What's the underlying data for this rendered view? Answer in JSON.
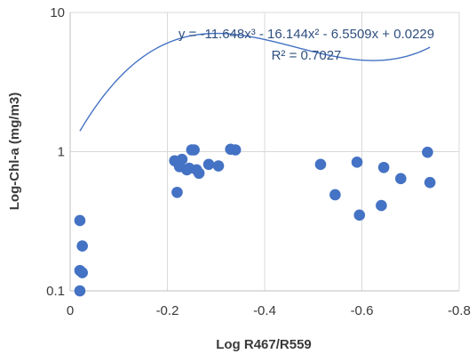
{
  "chart_data": {
    "type": "scatter",
    "title": "",
    "xlabel": "Log R467/R559",
    "ylabel": "Log-Chl-a (mg/m3)",
    "xlim": [
      0,
      -0.8
    ],
    "x_axis_reversed": true,
    "ylim": [
      0.1,
      10
    ],
    "y_scale": "log",
    "x_ticks": [
      0,
      -0.2,
      -0.4,
      -0.6,
      -0.8
    ],
    "x_tick_labels": [
      "0",
      "-0.2",
      "-0.4",
      "-0.6",
      "-0.8"
    ],
    "y_ticks": [
      0.1,
      1,
      10
    ],
    "y_tick_labels": [
      "0.1",
      "1",
      "10"
    ],
    "grid": true,
    "legend": "none",
    "colors": {
      "points": "#4472c4",
      "trendline": "#4472c4",
      "grid": "#d9d9d9",
      "axes": "#bfbfbf"
    },
    "series": [
      {
        "x": [
          -0.02,
          -0.02,
          -0.025,
          -0.02,
          -0.025,
          -0.215,
          -0.22,
          -0.225,
          -0.23,
          -0.24,
          -0.245,
          -0.25,
          -0.255,
          -0.26,
          -0.265,
          -0.285,
          -0.305,
          -0.33,
          -0.34,
          -0.515,
          -0.545,
          -0.59,
          -0.595,
          -0.64,
          -0.645,
          -0.68,
          -0.735,
          -0.74
        ],
        "y": [
          0.1,
          0.14,
          0.135,
          0.32,
          0.21,
          0.86,
          0.51,
          0.78,
          0.88,
          0.74,
          0.76,
          1.03,
          1.03,
          0.74,
          0.7,
          0.81,
          0.79,
          1.04,
          1.03,
          0.81,
          0.49,
          0.84,
          0.35,
          0.41,
          0.77,
          0.64,
          0.99,
          0.6
        ]
      }
    ],
    "trendline": {
      "type": "polynomial-3",
      "coefficients": [
        -11.648,
        -16.144,
        -6.5509,
        0.0229
      ],
      "x_range": [
        -0.02,
        -0.74
      ]
    },
    "equation_label": "y = -11.648x³ - 16.144x² - 6.5509x + 0.0229",
    "r2_label": "R² = 0.7027"
  }
}
